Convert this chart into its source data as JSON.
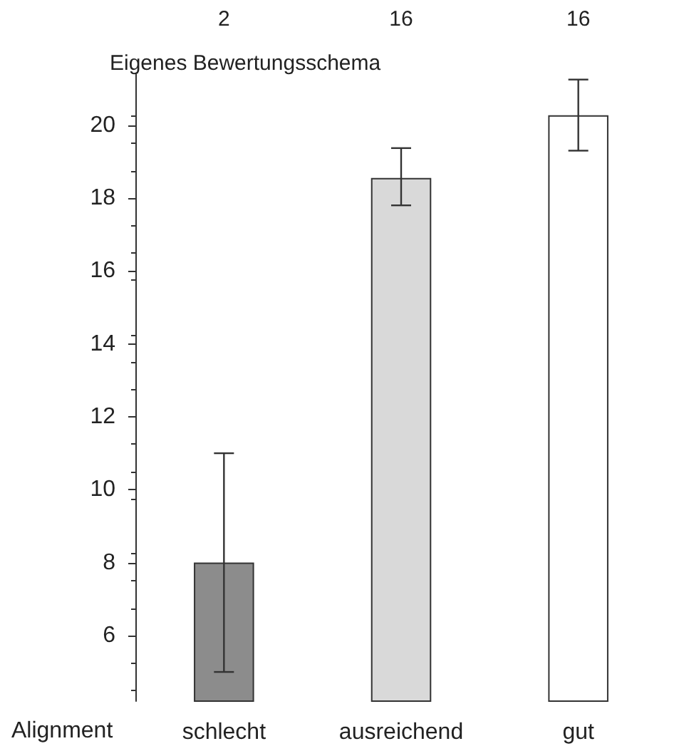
{
  "chart_data": {
    "type": "bar",
    "title": "Eigenes Bewertungsschema",
    "xlabel": "Alignment",
    "categories": [
      "schlecht",
      "ausreichend",
      "gut"
    ],
    "values": [
      8.0,
      18.55,
      20.27
    ],
    "colors": [
      "#8c8c8c",
      "#d9d9d9",
      "#ffffff"
    ],
    "errors": [
      [
        5.0,
        11.0
      ],
      [
        17.8,
        19.37
      ],
      [
        19.3,
        21.25
      ]
    ],
    "ylim": [
      4.2,
      21.4
    ],
    "yticks": [
      6,
      8,
      10,
      12,
      14,
      16,
      18,
      20
    ],
    "grid": false,
    "annotations": [
      "2",
      "16",
      "16"
    ]
  }
}
